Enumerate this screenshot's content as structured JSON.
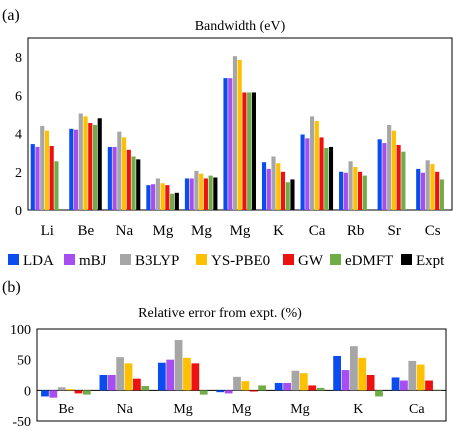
{
  "chart_data": [
    {
      "type": "bar",
      "panel_label": "(a)",
      "title": "Bandwidth (eV)",
      "categories": [
        "Li",
        "Be",
        "Na",
        "Mg",
        "Mg",
        "Mg",
        "K",
        "Ca",
        "Rb",
        "Sr",
        "Cs"
      ],
      "ylim": [
        0,
        9
      ],
      "yticks": [
        0,
        2,
        4,
        6,
        8
      ],
      "grid": false,
      "legend": "bottom",
      "series": [
        {
          "name": "LDA",
          "color": "#0b4cf0",
          "values": [
            3.45,
            4.25,
            3.3,
            1.3,
            1.65,
            6.9,
            2.5,
            3.95,
            2.0,
            3.7,
            2.15
          ]
        },
        {
          "name": "mBJ",
          "color": "#a64ef0",
          "values": [
            3.3,
            4.2,
            3.3,
            1.35,
            1.65,
            6.9,
            2.15,
            3.75,
            1.95,
            3.5,
            1.95
          ]
        },
        {
          "name": "B3LYP",
          "color": "#a6a6a6",
          "values": [
            4.4,
            5.05,
            4.1,
            1.65,
            2.05,
            8.05,
            2.8,
            4.9,
            2.55,
            4.45,
            2.6
          ]
        },
        {
          "name": "YS-PBE0",
          "color": "#ffc000",
          "values": [
            4.15,
            4.9,
            3.8,
            1.4,
            1.9,
            7.85,
            2.45,
            4.65,
            2.25,
            4.15,
            2.4
          ]
        },
        {
          "name": "GW",
          "color": "#ee1111",
          "values": [
            3.35,
            4.55,
            3.15,
            1.3,
            1.65,
            6.15,
            2.0,
            3.8,
            2.0,
            3.4,
            2.0
          ]
        },
        {
          "name": "eDMFT",
          "color": "#70ad47",
          "values": [
            2.55,
            4.45,
            2.8,
            0.85,
            1.8,
            6.15,
            1.45,
            3.25,
            1.8,
            3.05,
            1.6
          ]
        },
        {
          "name": "Expt",
          "color": "#000000",
          "values": [
            null,
            4.8,
            2.65,
            0.9,
            1.7,
            6.15,
            1.6,
            3.3,
            null,
            null,
            null
          ]
        }
      ]
    },
    {
      "type": "bar",
      "panel_label": "(b)",
      "title": "Relative error from expt. (%)",
      "categories": [
        "Be",
        "Na",
        "Mg",
        "Mg",
        "Mg",
        "K",
        "Ca"
      ],
      "ylim": [
        -50,
        100
      ],
      "yticks": [
        -50,
        0,
        50,
        100
      ],
      "grid": false,
      "series": [
        {
          "name": "LDA",
          "color": "#0b4cf0",
          "values": [
            -10,
            25,
            45,
            -3,
            12,
            56,
            21
          ]
        },
        {
          "name": "mBJ",
          "color": "#a64ef0",
          "values": [
            -12,
            25,
            50,
            -5,
            12,
            33,
            16
          ]
        },
        {
          "name": "B3LYP",
          "color": "#a6a6a6",
          "values": [
            5,
            54,
            82,
            22,
            32,
            72,
            48
          ]
        },
        {
          "name": "YS-PBE0",
          "color": "#ffc000",
          "values": [
            2,
            44,
            53,
            15,
            28,
            53,
            42
          ]
        },
        {
          "name": "GW",
          "color": "#ee1111",
          "values": [
            -5,
            19,
            44,
            -2,
            8,
            25,
            16
          ]
        },
        {
          "name": "eDMFT",
          "color": "#70ad47",
          "values": [
            -7,
            7,
            -7,
            8,
            4,
            -10,
            1
          ]
        }
      ]
    }
  ]
}
